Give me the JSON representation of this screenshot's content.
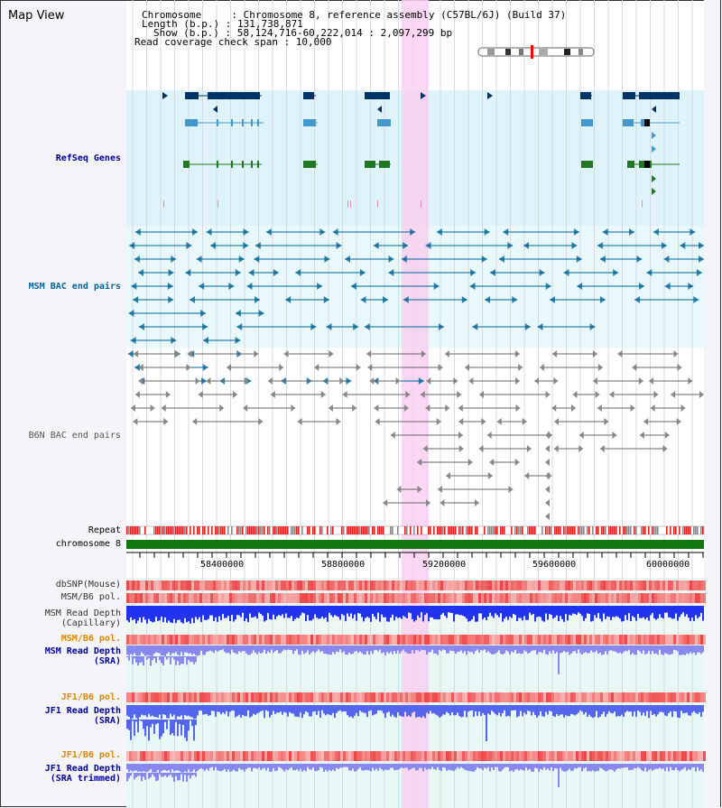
{
  "view_title": "Map View",
  "header": {
    "chromosome_line": "Chromosome     : Chromosome 8, reference assembly (C57BL/6J) (Build 37)",
    "length_line": "Length (b.p.) : 131,738,871",
    "show_line": "Show (b.p.) : 58,124,716-60,222,014 : 2,097,299 bp",
    "coverage_line": "Read coverage check span : 10,000"
  },
  "tracks": {
    "refseq": "RefSeq Genes",
    "msm_bac": "MSM BAC end pairs",
    "b6n_bac": "B6N BAC end pairs",
    "repeat": "Repeat",
    "chromosome": "chromosome 8",
    "dbsnp": "dbSNP(Mouse)",
    "msm_b6_pol": "MSM/B6 pol.",
    "msm_read_cap": "MSM Read Depth\n(Capillary)",
    "msm_b6_pol2": "MSM/B6 pol.",
    "msm_read_sra": "MSM Read Depth\n(SRA)",
    "jf1_b6_pol": "JF1/B6 pol.",
    "jf1_read_sra": "JF1 Read Depth\n(SRA)",
    "jf1_b6_pol2": "JF1/B6 pol.",
    "jf1_read_trim": "JF1 Read Depth\n(SRA trimmed)"
  },
  "axis_ticks": [
    "58400000",
    "58800000",
    "59200000",
    "59600000",
    "60000000"
  ],
  "colors": {
    "refseq_bg": "#dff3fb",
    "bac_bg": "#e8f8fb",
    "highlight": "#f9d0f0",
    "refseq_dark": "#003366",
    "refseq_light": "#4499cc",
    "refseq_green": "#227722",
    "msm_bac": "#006699",
    "b6n_bac": "#666666",
    "chrom": "#117711",
    "pol_red": "#ee4444",
    "depth_blue": "#2233ee",
    "depth_light": "#8888ee"
  }
}
